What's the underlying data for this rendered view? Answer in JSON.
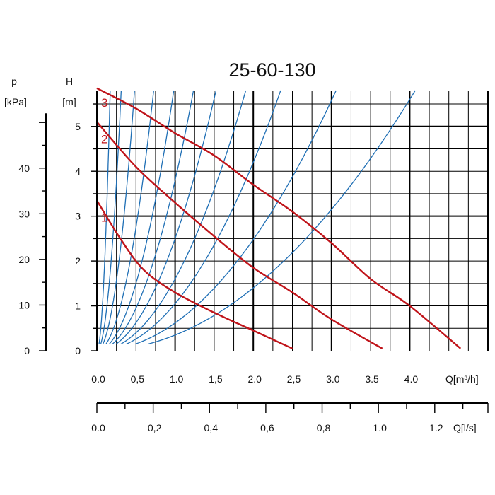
{
  "chart_data": {
    "type": "line",
    "title": "25-60-130",
    "left_axis": {
      "label_top": "p",
      "label_unit": "[kPa]",
      "ticks": [
        "0",
        "10",
        "20",
        "30",
        "40"
      ],
      "values": [
        0,
        10,
        20,
        30,
        40
      ],
      "minor_step": 5,
      "range": [
        0,
        50
      ]
    },
    "y_axis": {
      "label_top": "H",
      "label_unit": "[m]",
      "ticks": [
        "0",
        "1",
        "2",
        "3",
        "4",
        "5"
      ],
      "values": [
        0,
        1,
        2,
        3,
        4,
        5
      ],
      "range": [
        0,
        5.8
      ]
    },
    "x_axis": {
      "label": "Q[m³/h]",
      "ticks": [
        "0.0",
        "0,5",
        "1.0",
        "1,5",
        "2.0",
        "2,5",
        "3.0",
        "3.5",
        "4.0"
      ],
      "values": [
        0,
        0.5,
        1.0,
        1.5,
        2.0,
        2.5,
        3.0,
        3.5,
        4.0
      ],
      "range": [
        0,
        5.0
      ]
    },
    "x2_axis": {
      "label": "Q[l/s]",
      "ticks": [
        "0.0",
        "0,2",
        "0,4",
        "0,6",
        "0,8",
        "1.0",
        "1.2"
      ],
      "values": [
        0,
        0.2,
        0.4,
        0.6,
        0.8,
        1.0,
        1.2
      ],
      "minor_step": 0.1,
      "range": [
        0,
        1.3889
      ]
    },
    "series": [
      {
        "name": "1",
        "color": "#c0141a",
        "points": [
          [
            0,
            3.35
          ],
          [
            0.3,
            2.5
          ],
          [
            0.6,
            1.8
          ],
          [
            1.0,
            1.3
          ],
          [
            1.5,
            0.85
          ],
          [
            2.0,
            0.45
          ],
          [
            2.5,
            0.05
          ]
        ]
      },
      {
        "name": "2",
        "color": "#c0141a",
        "points": [
          [
            0,
            5.1
          ],
          [
            0.5,
            4.1
          ],
          [
            1.0,
            3.3
          ],
          [
            1.5,
            2.55
          ],
          [
            2.0,
            1.85
          ],
          [
            2.5,
            1.3
          ],
          [
            3.0,
            0.7
          ],
          [
            3.65,
            0.05
          ]
        ]
      },
      {
        "name": "3",
        "color": "#c0141a",
        "points": [
          [
            0,
            5.85
          ],
          [
            0.5,
            5.4
          ],
          [
            1.0,
            4.85
          ],
          [
            1.5,
            4.35
          ],
          [
            2.0,
            3.7
          ],
          [
            2.5,
            3.1
          ],
          [
            3.0,
            2.4
          ],
          [
            3.5,
            1.6
          ],
          [
            4.0,
            1.0
          ],
          [
            4.65,
            0.05
          ]
        ]
      }
    ],
    "system_curves": {
      "color": "#1f6fb5",
      "coefficients": [
        200,
        60,
        25,
        11,
        6,
        3.8,
        2.5,
        1.6,
        1.05,
        0.62,
        0.35
      ]
    }
  }
}
